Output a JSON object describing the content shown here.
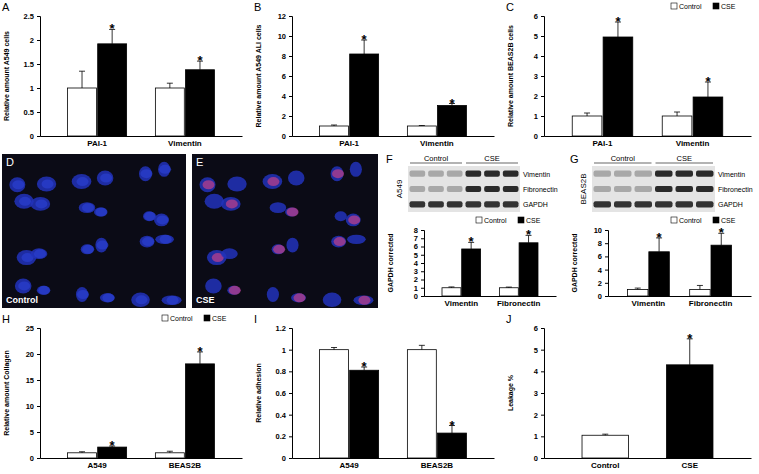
{
  "chart_data": [
    {
      "type": "bar",
      "title": "A",
      "y_label": "Relative amount A549 cells",
      "categories": [
        "PAI-1",
        "Vimentin"
      ],
      "series": [
        {
          "name": "Control",
          "color": "#ffffff",
          "values": [
            1.0,
            1.0
          ],
          "errors": [
            0.35,
            0.1
          ]
        },
        {
          "name": "CSE",
          "color": "#000000",
          "values": [
            1.92,
            1.38
          ],
          "errors": [
            0.3,
            0.18
          ],
          "annotations": [
            "*",
            "*"
          ]
        }
      ],
      "ylim": [
        0,
        2.5
      ],
      "yticks": [
        0,
        0.5,
        1,
        1.5,
        2,
        2.5
      ]
    },
    {
      "type": "bar",
      "title": "B",
      "y_label": "Relative amount A549 ALI cells",
      "categories": [
        "PAI-1",
        "Vimentin"
      ],
      "series": [
        {
          "name": "Control",
          "color": "#ffffff",
          "values": [
            1.0,
            1.0
          ],
          "errors": [
            0.1,
            0.05
          ]
        },
        {
          "name": "CSE",
          "color": "#000000",
          "values": [
            8.2,
            3.05
          ],
          "errors": [
            1.4,
            0.2
          ],
          "annotations": [
            "*",
            "*"
          ]
        }
      ],
      "ylim": [
        0,
        12
      ],
      "yticks": [
        0,
        2,
        4,
        6,
        8,
        10,
        12
      ]
    },
    {
      "type": "bar",
      "title": "C",
      "y_label": "Relative amount BEAS2B cells",
      "categories": [
        "PAI-1",
        "Vimentin"
      ],
      "legend": "top-right",
      "series": [
        {
          "name": "Control",
          "color": "#ffffff",
          "values": [
            1.0,
            1.0
          ],
          "errors": [
            0.15,
            0.2
          ]
        },
        {
          "name": "CSE",
          "color": "#000000",
          "values": [
            4.95,
            1.95
          ],
          "errors": [
            0.75,
            0.75
          ],
          "annotations": [
            "*",
            "*"
          ]
        }
      ],
      "ylim": [
        0,
        6
      ],
      "yticks": [
        0,
        1,
        2,
        3,
        4,
        5,
        6
      ]
    },
    {
      "type": "image",
      "title": "D",
      "label": "Control",
      "color": "#2a3fd0"
    },
    {
      "type": "image",
      "title": "E",
      "label": "CSE",
      "color": "#c0408a"
    },
    {
      "type": "blot",
      "title": "F",
      "label": "A549",
      "groups": [
        "Control",
        "CSE"
      ],
      "bands": [
        "Vimentin",
        "Fibronectin",
        "GAPDH"
      ]
    },
    {
      "type": "bar",
      "y_label": "GAPDH corrected",
      "categories": [
        "Vimentin",
        "Fibronectin"
      ],
      "legend": "top-right",
      "series": [
        {
          "name": "Control",
          "color": "#ffffff",
          "values": [
            1.0,
            1.0
          ],
          "errors": [
            0.1,
            0.08
          ]
        },
        {
          "name": "CSE",
          "color": "#000000",
          "values": [
            5.7,
            6.45
          ],
          "errors": [
            0.8,
            0.9
          ],
          "annotations": [
            "*",
            "*"
          ]
        }
      ],
      "ylim": [
        0,
        8
      ],
      "yticks": [
        0,
        1,
        2,
        3,
        4,
        5,
        6,
        7,
        8
      ]
    },
    {
      "type": "blot",
      "title": "G",
      "label": "BEAS2B",
      "groups": [
        "Control",
        "CSE"
      ],
      "bands": [
        "Vimentin",
        "Fibronectin",
        "GAPDH"
      ]
    },
    {
      "type": "bar",
      "y_label": "GAPDH corrected",
      "categories": [
        "Vimentin",
        "Fibronectin"
      ],
      "legend": "top-right",
      "series": [
        {
          "name": "Control",
          "color": "#ffffff",
          "values": [
            1.0,
            1.0
          ],
          "errors": [
            0.2,
            0.6
          ]
        },
        {
          "name": "CSE",
          "color": "#000000",
          "values": [
            6.7,
            7.7
          ],
          "errors": [
            2.1,
            1.8
          ],
          "annotations": [
            "*",
            "*"
          ]
        }
      ],
      "ylim": [
        0,
        10
      ],
      "yticks": [
        0,
        2,
        4,
        6,
        8,
        10
      ]
    },
    {
      "type": "bar",
      "title": "H",
      "y_label": "Relative amount Collagen",
      "categories": [
        "A549",
        "BEAS2B"
      ],
      "legend": "top-right",
      "series": [
        {
          "name": "Control",
          "color": "#ffffff",
          "values": [
            1.0,
            1.0
          ],
          "errors": [
            0.2,
            0.3
          ]
        },
        {
          "name": "CSE",
          "color": "#000000",
          "values": [
            2.1,
            18.1
          ],
          "errors": [
            0.2,
            2.3
          ],
          "annotations": [
            "*",
            "*"
          ]
        }
      ],
      "ylim": [
        0,
        25
      ],
      "yticks": [
        0,
        5,
        10,
        15,
        20,
        25
      ]
    },
    {
      "type": "bar",
      "title": "I",
      "y_label": "Relative adhesion",
      "categories": [
        "A549",
        "BEAS2B"
      ],
      "series": [
        {
          "name": "Control",
          "color": "#ffffff",
          "values": [
            1.0,
            1.0
          ],
          "errors": [
            0.02,
            0.04
          ]
        },
        {
          "name": "CSE",
          "color": "#000000",
          "values": [
            0.81,
            0.23
          ],
          "errors": [
            0.03,
            0.07
          ],
          "annotations": [
            "*",
            "*"
          ]
        }
      ],
      "ylim": [
        0,
        1.2
      ],
      "yticks": [
        0,
        0.2,
        0.4,
        0.6,
        0.8,
        1,
        1.2
      ]
    },
    {
      "type": "bar",
      "title": "J",
      "y_label": "Leakage %",
      "categories": [
        "Control",
        "CSE"
      ],
      "values": [
        1.05,
        4.3
      ],
      "errors": [
        0.05,
        1.2
      ],
      "annotations": [
        null,
        "*"
      ],
      "colors": [
        "#ffffff",
        "#000000"
      ],
      "ylim": [
        0,
        6
      ],
      "yticks": [
        0,
        1,
        2,
        3,
        4,
        5,
        6
      ]
    }
  ]
}
